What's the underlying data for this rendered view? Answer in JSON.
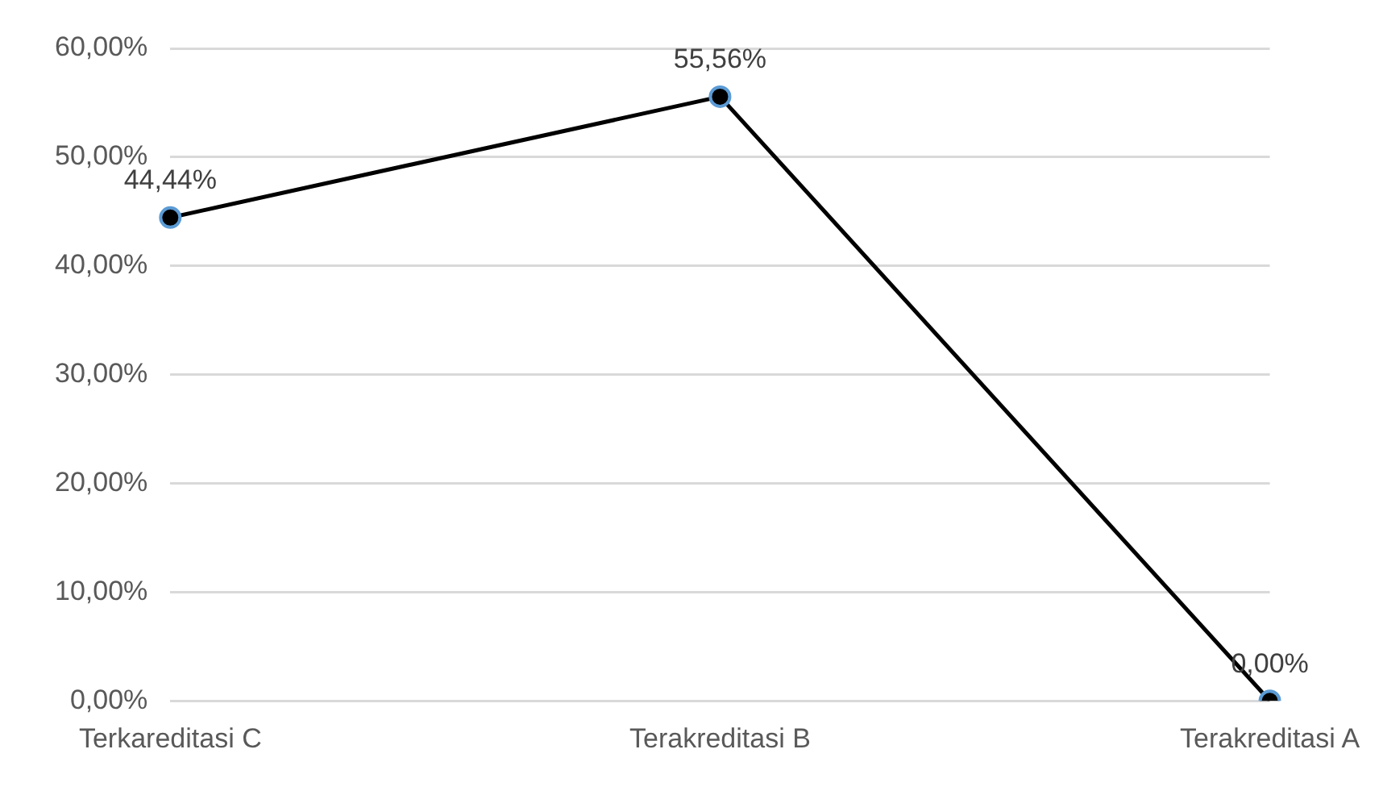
{
  "chart_data": {
    "type": "line",
    "categories": [
      "Terkareditasi C",
      "Terakreditasi B",
      "Terakreditasi A"
    ],
    "series": [
      {
        "color": "#000000",
        "values": [
          44.44,
          55.56,
          0
        ],
        "value_labels": [
          "44,44%",
          "55,56%",
          "0,00%"
        ]
      }
    ],
    "ylim": [
      0,
      60
    ],
    "yticks": [
      {
        "value": 0,
        "label": "0,00%"
      },
      {
        "value": 10,
        "label": "10,00%"
      },
      {
        "value": 20,
        "label": "20,00%"
      },
      {
        "value": 30,
        "label": "30,00%"
      },
      {
        "value": 40,
        "label": "40,00%"
      },
      {
        "value": 50,
        "label": "50,00%"
      },
      {
        "value": 60,
        "label": "60,00%"
      }
    ],
    "grid": "y",
    "legend": false,
    "marker": "circle",
    "line_style": "solid"
  }
}
